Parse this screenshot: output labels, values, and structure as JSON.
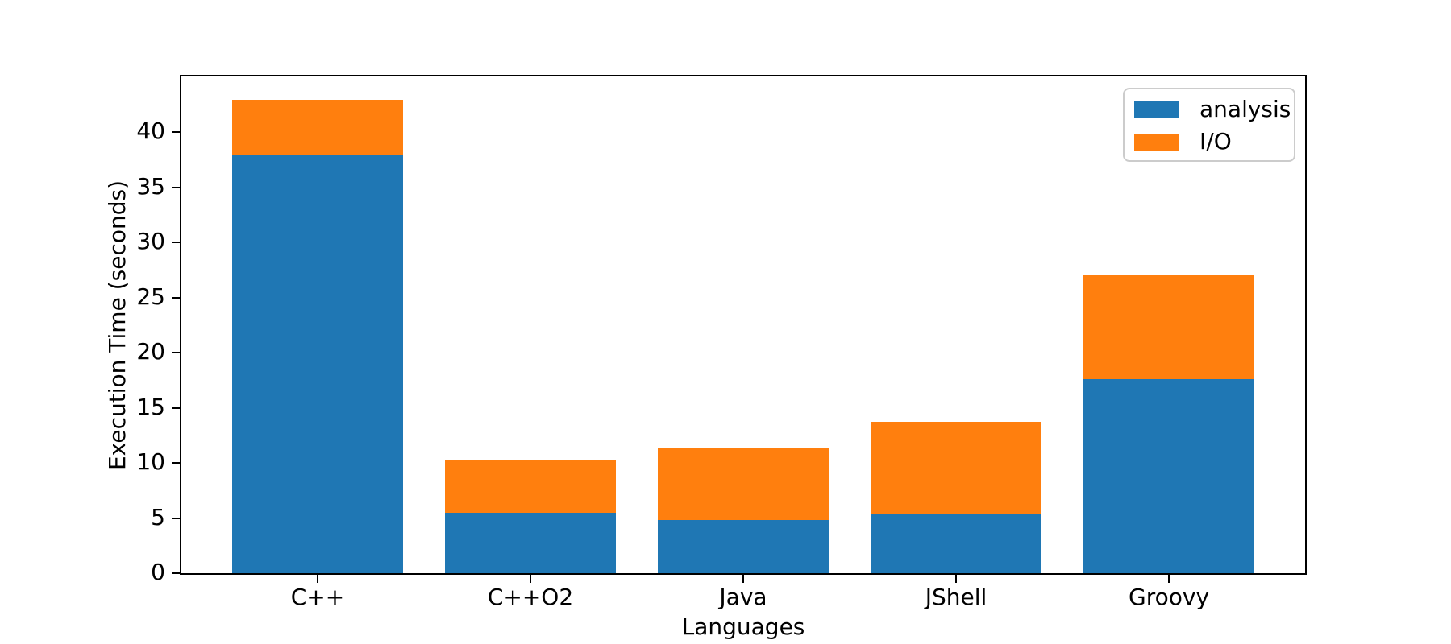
{
  "chart_data": {
    "type": "bar",
    "stacked": true,
    "title": "",
    "xlabel": "Languages",
    "ylabel": "Execution Time (seconds)",
    "categories": [
      "C++",
      "C++O2",
      "Java",
      "JShell",
      "Groovy"
    ],
    "series": [
      {
        "name": "analysis",
        "color": "#1f77b4",
        "values": [
          37.9,
          5.5,
          4.8,
          5.3,
          17.6
        ]
      },
      {
        "name": "I/O",
        "color": "#ff7f0e",
        "values": [
          5.0,
          4.7,
          6.5,
          8.4,
          9.4
        ]
      }
    ],
    "yticks": [
      0,
      5,
      10,
      15,
      20,
      25,
      30,
      35,
      40
    ],
    "ylim": [
      0,
      45.05
    ],
    "xlim": [
      -0.64,
      4.64
    ],
    "bar_width": 0.8,
    "grid": false,
    "legend": {
      "position": "upper right",
      "entries": [
        "analysis",
        "I/O"
      ]
    }
  },
  "colors": {
    "spine": "#000000",
    "tick": "#000000",
    "text": "#000000",
    "legend_border": "#cccccc",
    "background": "#ffffff"
  }
}
